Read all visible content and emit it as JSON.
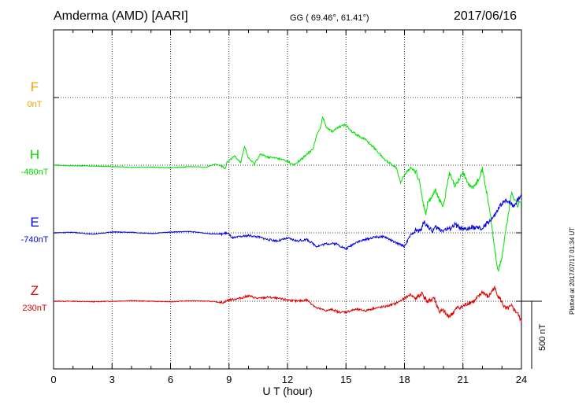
{
  "header": {
    "station": "Amderma (AMD)  [AARI]",
    "coords": "GG ( 69.46°,  61.41°)",
    "date": "2017/06/16"
  },
  "footer": {
    "plotted": "Plotted at 2017/07/17 01:34 UT"
  },
  "scale_bar": {
    "label": "500 nT",
    "value_nT": 500
  },
  "chart_data": {
    "type": "line",
    "title": "Amderma (AMD)  [AARI]",
    "xlabel": "U T (hour)",
    "ylabel": "",
    "xlim": [
      0,
      24
    ],
    "xticks": [
      "0",
      "3",
      "6",
      "9",
      "12",
      "15",
      "18",
      "21",
      "24"
    ],
    "grid": true,
    "legend": "left",
    "nT_per_panel": 250,
    "series": [
      {
        "name": "F",
        "baseline_label": "0nT",
        "color": "#f5a000",
        "level": 3,
        "x": [],
        "values": []
      },
      {
        "name": "H",
        "baseline_label": "-480nT",
        "color": "#00e000",
        "level": 2,
        "x": [
          0,
          1,
          2,
          3,
          4,
          5,
          6,
          7,
          7.8,
          8.3,
          8.6,
          8.8,
          8.9,
          9.0,
          9.3,
          9.6,
          9.8,
          10.0,
          10.3,
          10.6,
          11.0,
          11.5,
          12.0,
          12.3,
          12.6,
          13.0,
          13.3,
          13.5,
          13.7,
          13.8,
          14.0,
          14.3,
          14.6,
          15.0,
          15.3,
          15.6,
          16.0,
          16.5,
          17.0,
          17.3,
          17.6,
          17.8,
          18.0,
          18.3,
          18.6,
          18.8,
          19.0,
          19.1,
          19.2,
          19.4,
          19.6,
          19.8,
          20.0,
          20.3,
          20.6,
          21.0,
          21.3,
          21.6,
          22.0,
          22.2,
          22.4,
          22.6,
          22.8,
          23.0,
          23.2,
          23.5,
          23.8,
          24.0
        ],
        "values": [
          0,
          -2,
          -3,
          -5,
          -8,
          -7,
          -10,
          -5,
          -8,
          5,
          -3,
          -15,
          10,
          15,
          35,
          10,
          70,
          25,
          5,
          40,
          30,
          25,
          15,
          0,
          15,
          40,
          60,
          110,
          140,
          180,
          140,
          125,
          140,
          150,
          125,
          110,
          95,
          60,
          20,
          5,
          -10,
          -65,
          -35,
          -10,
          -25,
          -70,
          -155,
          -180,
          -130,
          -125,
          -90,
          -130,
          -150,
          -30,
          -80,
          -25,
          -75,
          -80,
          -15,
          -95,
          -180,
          -295,
          -395,
          -340,
          -240,
          -100,
          -150,
          -130
        ]
      },
      {
        "name": "E",
        "baseline_label": "-740nT",
        "color": "#0000e0",
        "level": 1,
        "x": [
          0,
          1,
          2,
          3,
          4,
          5,
          6,
          7,
          8,
          8.6,
          8.9,
          9.2,
          9.5,
          10.0,
          10.5,
          11.0,
          11.5,
          12.0,
          12.5,
          13.0,
          13.5,
          14.0,
          14.5,
          15.0,
          15.5,
          16.0,
          16.5,
          17.0,
          17.5,
          18.0,
          18.3,
          18.6,
          18.8,
          19.0,
          19.2,
          19.4,
          19.6,
          19.9,
          20.3,
          20.6,
          21.0,
          21.5,
          22.0,
          22.3,
          22.6,
          23.0,
          23.3,
          23.6,
          24.0
        ],
        "values": [
          0,
          2,
          -5,
          3,
          2,
          -3,
          3,
          5,
          -3,
          -5,
          0,
          -20,
          -15,
          -10,
          -15,
          -25,
          -30,
          -20,
          -30,
          -25,
          -50,
          -40,
          -40,
          -60,
          -35,
          -25,
          -15,
          -15,
          -35,
          -50,
          -10,
          10,
          5,
          40,
          25,
          5,
          20,
          10,
          15,
          30,
          10,
          20,
          15,
          40,
          60,
          110,
          120,
          100,
          140
        ]
      },
      {
        "name": "Z",
        "baseline_label": "230nT",
        "color": "#e00000",
        "level": 0,
        "x": [
          0,
          1,
          2,
          3,
          4,
          5,
          6,
          7,
          8,
          8.7,
          9.0,
          9.5,
          10.0,
          10.5,
          11.0,
          11.5,
          12.0,
          12.5,
          13.0,
          13.5,
          14.0,
          14.3,
          14.6,
          15.0,
          15.5,
          16.0,
          16.5,
          17.0,
          17.5,
          18.0,
          18.3,
          18.6,
          18.9,
          19.2,
          19.5,
          19.8,
          20.0,
          20.2,
          20.4,
          20.7,
          21.0,
          21.3,
          21.6,
          22.0,
          22.3,
          22.6,
          23.0,
          23.2,
          23.5,
          23.8,
          24.0
        ],
        "values": [
          0,
          0,
          -2,
          0,
          2,
          0,
          -2,
          2,
          0,
          -5,
          5,
          10,
          20,
          10,
          15,
          10,
          5,
          0,
          5,
          -25,
          -35,
          -30,
          -40,
          -40,
          -30,
          -35,
          -25,
          -20,
          -10,
          10,
          25,
          10,
          30,
          -5,
          15,
          -40,
          -35,
          -55,
          -50,
          -25,
          -20,
          -5,
          0,
          35,
          15,
          50,
          -5,
          -30,
          -20,
          -45,
          -75
        ]
      }
    ]
  }
}
